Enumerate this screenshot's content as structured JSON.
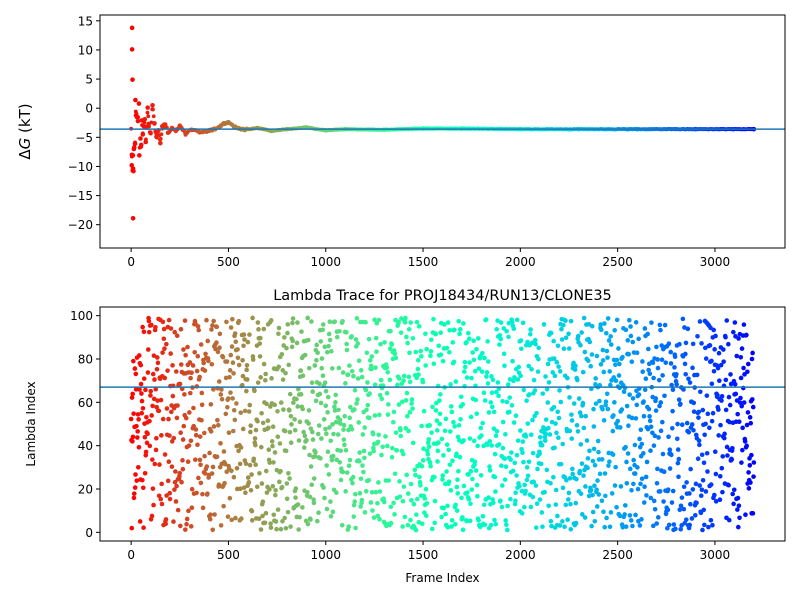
{
  "chart_data": [
    {
      "type": "scatter",
      "title": "",
      "xlabel": "",
      "ylabel": "ΔG (kT)",
      "ylabel_parts": {
        "delta": "Δ",
        "var": "G",
        "unit": " (kT)"
      },
      "xlim": [
        -160,
        3360
      ],
      "ylim": [
        -24,
        16
      ],
      "xticks": [
        0,
        500,
        1000,
        1500,
        2000,
        2500,
        3000
      ],
      "yticks": [
        -20,
        -15,
        -10,
        -5,
        0,
        5,
        10,
        15
      ],
      "ytick_labels": [
        "−20",
        "−15",
        "−10",
        "−5",
        "0",
        "5",
        "10",
        "15"
      ],
      "hline": {
        "y": -3.6,
        "color": "#1f77b4"
      },
      "colormap": "rainbow",
      "series": [
        {
          "description": "running free-energy estimate per frame; large scatter near frame 0 converging to about -3.6",
          "x_range": [
            0,
            3200
          ],
          "points": [
            [
              5,
              13.8
            ],
            [
              5,
              10.1
            ],
            [
              7,
              4.9
            ],
            [
              10,
              -18.9
            ],
            [
              8,
              -10.7
            ],
            [
              3,
              -9.8
            ],
            [
              12,
              -10.8
            ],
            [
              9,
              -8.1
            ],
            [
              4,
              -8
            ],
            [
              14,
              -7
            ],
            [
              16,
              -6.8
            ],
            [
              20,
              -6.1
            ],
            [
              22,
              1.4
            ],
            [
              25,
              -1.2
            ],
            [
              30,
              -1.5
            ],
            [
              35,
              -2.2
            ],
            [
              40,
              0.8
            ],
            [
              42,
              -8.1
            ],
            [
              48,
              -5.2
            ],
            [
              52,
              -6.3
            ],
            [
              55,
              -2.1
            ],
            [
              60,
              -4.5
            ],
            [
              65,
              -3.1
            ],
            [
              70,
              -1.9
            ],
            [
              75,
              -5.8
            ],
            [
              80,
              -3.2
            ],
            [
              85,
              0.1
            ],
            [
              90,
              -2.7
            ],
            [
              100,
              -4.3
            ],
            [
              110,
              0.5
            ],
            [
              120,
              -2.6
            ],
            [
              130,
              -4.9
            ],
            [
              140,
              -3.8
            ],
            [
              150,
              -6
            ],
            [
              160,
              -3.1
            ],
            [
              175,
              -2.8
            ],
            [
              190,
              -4.2
            ],
            [
              210,
              -3.4
            ],
            [
              230,
              -3.9
            ],
            [
              250,
              -3.0
            ],
            [
              280,
              -4.4
            ],
            [
              310,
              -3.7
            ],
            [
              350,
              -4.1
            ],
            [
              400,
              -3.9
            ],
            [
              450,
              -3.3
            ],
            [
              480,
              -2.6
            ],
            [
              500,
              -2.5
            ],
            [
              530,
              -3.2
            ],
            [
              580,
              -3.7
            ],
            [
              650,
              -3.4
            ],
            [
              720,
              -3.9
            ],
            [
              800,
              -3.6
            ],
            [
              900,
              -3.3
            ],
            [
              1000,
              -3.8
            ],
            [
              1100,
              -3.6
            ],
            [
              1300,
              -3.7
            ],
            [
              1500,
              -3.5
            ],
            [
              1700,
              -3.5
            ],
            [
              2000,
              -3.6
            ],
            [
              2300,
              -3.6
            ],
            [
              2600,
              -3.6
            ],
            [
              2900,
              -3.6
            ],
            [
              3200,
              -3.6
            ]
          ]
        }
      ]
    },
    {
      "type": "scatter",
      "title": "Lambda Trace for PROJ18434/RUN13/CLONE35",
      "xlabel": "Frame Index",
      "ylabel": "Lambda Index",
      "xlim": [
        -160,
        3360
      ],
      "ylim": [
        -4,
        104
      ],
      "xticks": [
        0,
        500,
        1000,
        1500,
        2000,
        2500,
        3000
      ],
      "yticks": [
        0,
        20,
        40,
        60,
        80,
        100
      ],
      "hline": {
        "y": 67,
        "color": "#1f77b4"
      },
      "colormap": "rainbow",
      "series": [
        {
          "description": "lambda index visited at each frame, values spread uniformly between 1 and 99",
          "x_range": [
            0,
            3200
          ],
          "y_range": [
            1,
            99
          ],
          "frame_count": 3200
        }
      ]
    }
  ]
}
